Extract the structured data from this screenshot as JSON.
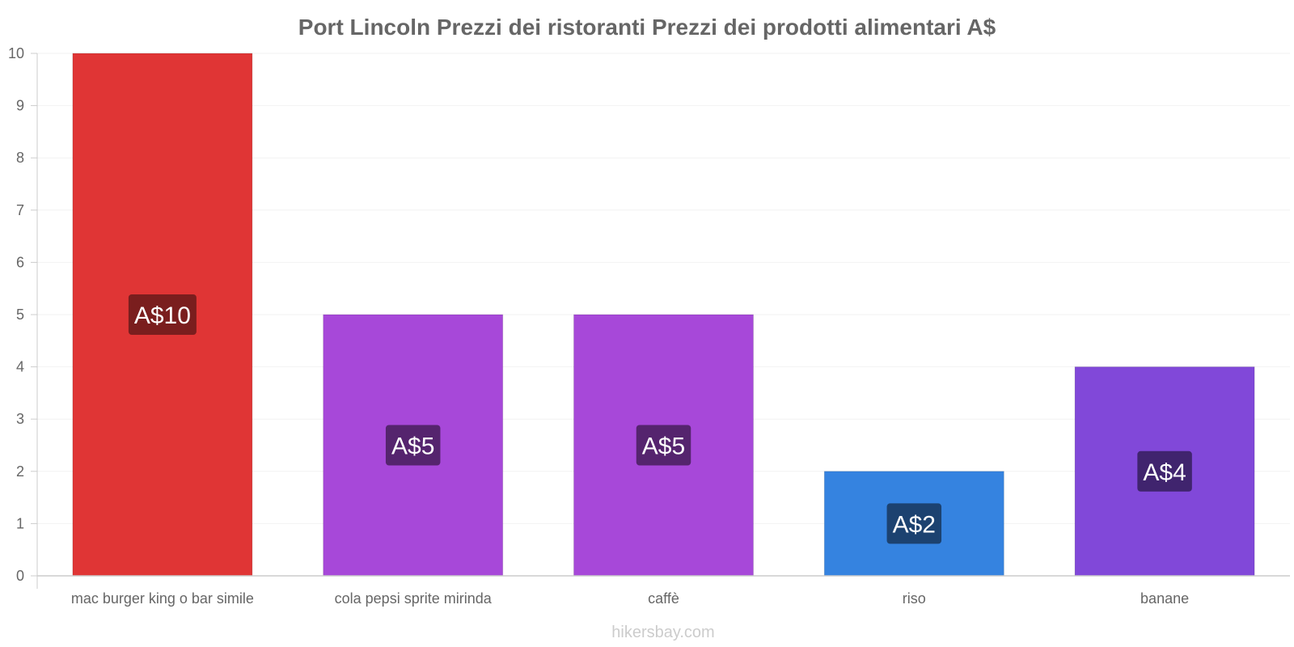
{
  "chart_data": {
    "type": "bar",
    "title": "Port Lincoln Prezzi dei ristoranti Prezzi dei prodotti alimentari A$",
    "categories": [
      "mac burger king o bar simile",
      "cola pepsi sprite mirinda",
      "caffè",
      "riso",
      "banane"
    ],
    "values": [
      10,
      5,
      5,
      2,
      4
    ],
    "data_labels": [
      "A$10",
      "A$5",
      "A$5",
      "A$2",
      "A$4"
    ],
    "colors": [
      "#e03535",
      "#a748d9",
      "#a748d9",
      "#3583e0",
      "#8148d9"
    ],
    "label_bg_colors": [
      "#7a1e1e",
      "#55246e",
      "#55246e",
      "#1c4270",
      "#40246e"
    ],
    "ylim": [
      0,
      10
    ],
    "yticks": [
      0,
      1,
      2,
      3,
      4,
      5,
      6,
      7,
      8,
      9,
      10
    ],
    "xlabel": "",
    "ylabel": "",
    "grid": true,
    "legend": "none"
  },
  "watermark": "hikersbay.com"
}
